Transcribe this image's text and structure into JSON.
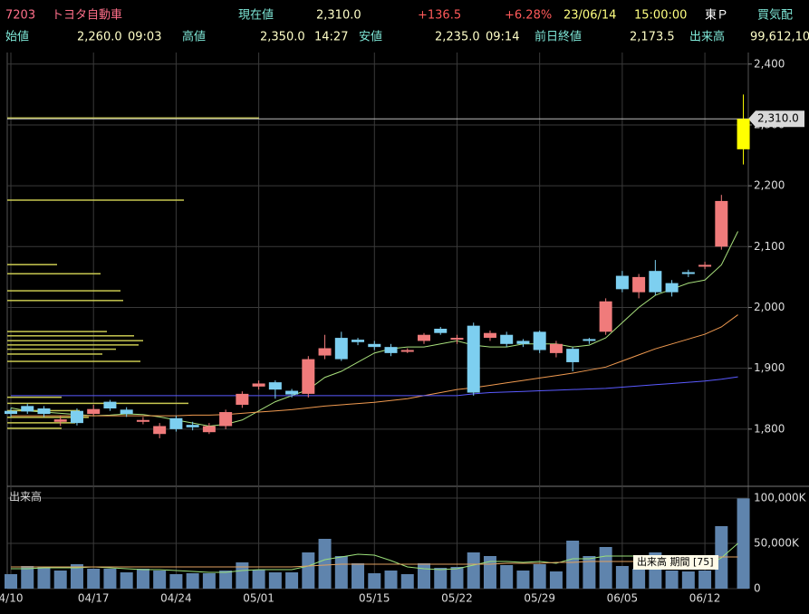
{
  "header": {
    "row1": [
      "7203",
      "トヨタ自動車",
      "現在値",
      "2,310.0",
      "+136.5",
      "+6.28%",
      "23/06/14",
      "15:00:00",
      "東Ｐ",
      "買気配"
    ],
    "row2": [
      "始値",
      "2,260.0",
      "09:03",
      "高値",
      "2,350.0",
      "14:27",
      "安値",
      "2,235.0",
      "09:14",
      "前日終値",
      "2,173.5",
      "出来高",
      "99,612,10"
    ]
  },
  "chart_data": [
    {
      "type": "candlestick",
      "open": [
        1830,
        1838,
        1834,
        1812,
        1830,
        1825,
        1845,
        1832,
        1812,
        1792,
        1818,
        1807,
        1795,
        1805,
        1840,
        1870,
        1877,
        1863,
        1858,
        1921,
        1950,
        1947,
        1940,
        1935,
        1928,
        1945,
        1965,
        1948,
        1970,
        1950,
        1955,
        1945,
        1960,
        1925,
        1932,
        1948,
        1960,
        2052,
        2025,
        2060,
        2040,
        2058,
        2067,
        2100,
        2260
      ],
      "high": [
        1835,
        1842,
        1838,
        1822,
        1834,
        1840,
        1848,
        1836,
        1820,
        1810,
        1822,
        1812,
        1810,
        1832,
        1862,
        1880,
        1880,
        1866,
        1920,
        1955,
        1960,
        1950,
        1945,
        1940,
        1933,
        1958,
        1968,
        1955,
        1975,
        1962,
        1960,
        1948,
        1962,
        1945,
        1935,
        1950,
        2015,
        2060,
        2055,
        2078,
        2045,
        2062,
        2075,
        2185,
        2350
      ],
      "low": [
        1820,
        1825,
        1820,
        1805,
        1806,
        1822,
        1830,
        1820,
        1808,
        1785,
        1796,
        1798,
        1792,
        1800,
        1835,
        1865,
        1850,
        1852,
        1852,
        1915,
        1912,
        1938,
        1930,
        1920,
        1925,
        1940,
        1955,
        1940,
        1855,
        1945,
        1935,
        1935,
        1925,
        1918,
        1895,
        1940,
        1955,
        2025,
        2015,
        2020,
        2018,
        2050,
        2063,
        2095,
        2235
      ],
      "close": [
        1825,
        1829,
        1825,
        1816,
        1810,
        1833,
        1834,
        1825,
        1815,
        1805,
        1800,
        1803,
        1805,
        1828,
        1858,
        1875,
        1865,
        1857,
        1915,
        1933,
        1915,
        1943,
        1935,
        1925,
        1930,
        1955,
        1958,
        1950,
        1860,
        1958,
        1940,
        1940,
        1930,
        1940,
        1910,
        1945,
        2010,
        2030,
        2050,
        2025,
        2025,
        2055,
        2070,
        2175,
        2310
      ],
      "colors": {
        "up": "#f07b7b",
        "down": "#7dcff0",
        "current": "#ffff00"
      },
      "ma_lines": [
        {
          "color": "#a8e07c",
          "values": [
            1835,
            1830,
            1828,
            1826,
            1824,
            1822,
            1823,
            1825,
            1824,
            1820,
            1815,
            1810,
            1805,
            1808,
            1815,
            1830,
            1845,
            1855,
            1865,
            1885,
            1895,
            1910,
            1925,
            1932,
            1935,
            1935,
            1940,
            1945,
            1938,
            1935,
            1935,
            1940,
            1940,
            1940,
            1935,
            1938,
            1950,
            1975,
            2000,
            2020,
            2030,
            2040,
            2045,
            2070,
            2125
          ]
        },
        {
          "color": "#f09a50",
          "values": [
            1822,
            1822,
            1822,
            1822,
            1822,
            1822,
            1822,
            1822,
            1822,
            1822,
            1822,
            1823,
            1823,
            1824,
            1826,
            1828,
            1830,
            1832,
            1835,
            1838,
            1840,
            1842,
            1844,
            1847,
            1850,
            1855,
            1860,
            1865,
            1868,
            1872,
            1876,
            1880,
            1884,
            1888,
            1892,
            1897,
            1902,
            1912,
            1922,
            1932,
            1940,
            1948,
            1956,
            1968,
            1988
          ]
        },
        {
          "color": "#5a5aff",
          "values": [
            1855,
            1855,
            1855,
            1855,
            1855,
            1855,
            1855,
            1855,
            1855,
            1855,
            1855,
            1855,
            1855,
            1855,
            1855,
            1855,
            1855,
            1855,
            1855,
            1855,
            1855,
            1855,
            1855,
            1855,
            1855,
            1855,
            1855,
            1855,
            1858,
            1860,
            1861,
            1862,
            1863,
            1864,
            1865,
            1866,
            1867,
            1869,
            1871,
            1873,
            1875,
            1877,
            1879,
            1882,
            1886
          ]
        }
      ],
      "volume_by_price": {
        "color": "#c8c850",
        "prices": [
          2311,
          2176,
          2070,
          2055,
          2027,
          2011,
          1960,
          1953,
          1945,
          1938,
          1931,
          1923,
          1911,
          1852,
          1842,
          1830,
          1819,
          1810,
          1801
        ],
        "values": [
          278,
          195,
          55,
          103,
          125,
          128,
          110,
          140,
          150,
          145,
          120,
          105,
          147,
          60,
          200,
          80,
          90,
          75,
          60
        ]
      },
      "current": {
        "value": 2310,
        "label": "2,310.0"
      },
      "ylim": [
        1706,
        2419
      ],
      "yticks": [
        {
          "value": 1800,
          "label": "1,800"
        },
        {
          "value": 1900,
          "label": "1,900"
        },
        {
          "value": 2000,
          "label": "2,000"
        },
        {
          "value": 2100,
          "label": "2,100"
        },
        {
          "value": 2200,
          "label": "2,200"
        },
        {
          "value": 2300,
          "label": "2,300"
        },
        {
          "value": 2400,
          "label": "2,400"
        }
      ],
      "grid": true
    },
    {
      "type": "bar",
      "panel_label": "出来高",
      "legend_text": "出来高 期間 [75]",
      "categories": [
        "4/10",
        null,
        null,
        null,
        null,
        "04/17",
        null,
        null,
        null,
        null,
        "04/24",
        null,
        null,
        null,
        null,
        "05/01",
        null,
        null,
        null,
        null,
        null,
        null,
        "05/15",
        null,
        null,
        null,
        null,
        "05/22",
        null,
        null,
        null,
        null,
        "05/29",
        null,
        null,
        null,
        null,
        "06/05",
        null,
        null,
        null,
        null,
        "06/12",
        null,
        null
      ],
      "values": [
        16000,
        25000,
        24000,
        20000,
        27000,
        22000,
        22000,
        18000,
        22000,
        20000,
        16000,
        17000,
        17000,
        20000,
        29000,
        21000,
        18000,
        18000,
        40000,
        55000,
        36000,
        28000,
        17000,
        20000,
        16000,
        28000,
        23000,
        24000,
        40000,
        36000,
        26000,
        20000,
        27000,
        19000,
        53000,
        36000,
        46000,
        25000,
        22000,
        40000,
        20000,
        19000,
        20000,
        69000,
        99612
      ],
      "color": "#5f84ad",
      "ma_lines": [
        {
          "color": "#9be07a",
          "values": [
            22000,
            22000,
            23000,
            23000,
            23000,
            24000,
            23000,
            22000,
            21000,
            21000,
            20000,
            19000,
            18000,
            18000,
            20000,
            21000,
            21000,
            21000,
            25000,
            32000,
            35000,
            38000,
            37000,
            31000,
            24000,
            22000,
            21000,
            22000,
            26000,
            30000,
            30000,
            29000,
            30000,
            28000,
            33000,
            33000,
            36000,
            36000,
            36000,
            34000,
            31000,
            25000,
            24000,
            34000,
            50000
          ]
        },
        {
          "color": "#e0a060",
          "values": [
            24000,
            24000,
            24000,
            24000,
            24000,
            24000,
            24000,
            24000,
            24000,
            24000,
            24000,
            24000,
            24000,
            24000,
            24000,
            24000,
            24000,
            24000,
            25000,
            26000,
            27000,
            27000,
            27000,
            27000,
            27000,
            27000,
            27000,
            27000,
            27000,
            27000,
            28000,
            28000,
            28000,
            29000,
            29000,
            30000,
            30000,
            30000,
            30000,
            30000,
            31000,
            33000,
            35000,
            35000,
            35000
          ]
        }
      ],
      "ylim": [
        0,
        113000
      ],
      "yticks": [
        0,
        {
          "value": 50000,
          "label": "50,000K"
        },
        {
          "value": 100000,
          "label": "100,000K"
        }
      ],
      "grid": true
    }
  ]
}
